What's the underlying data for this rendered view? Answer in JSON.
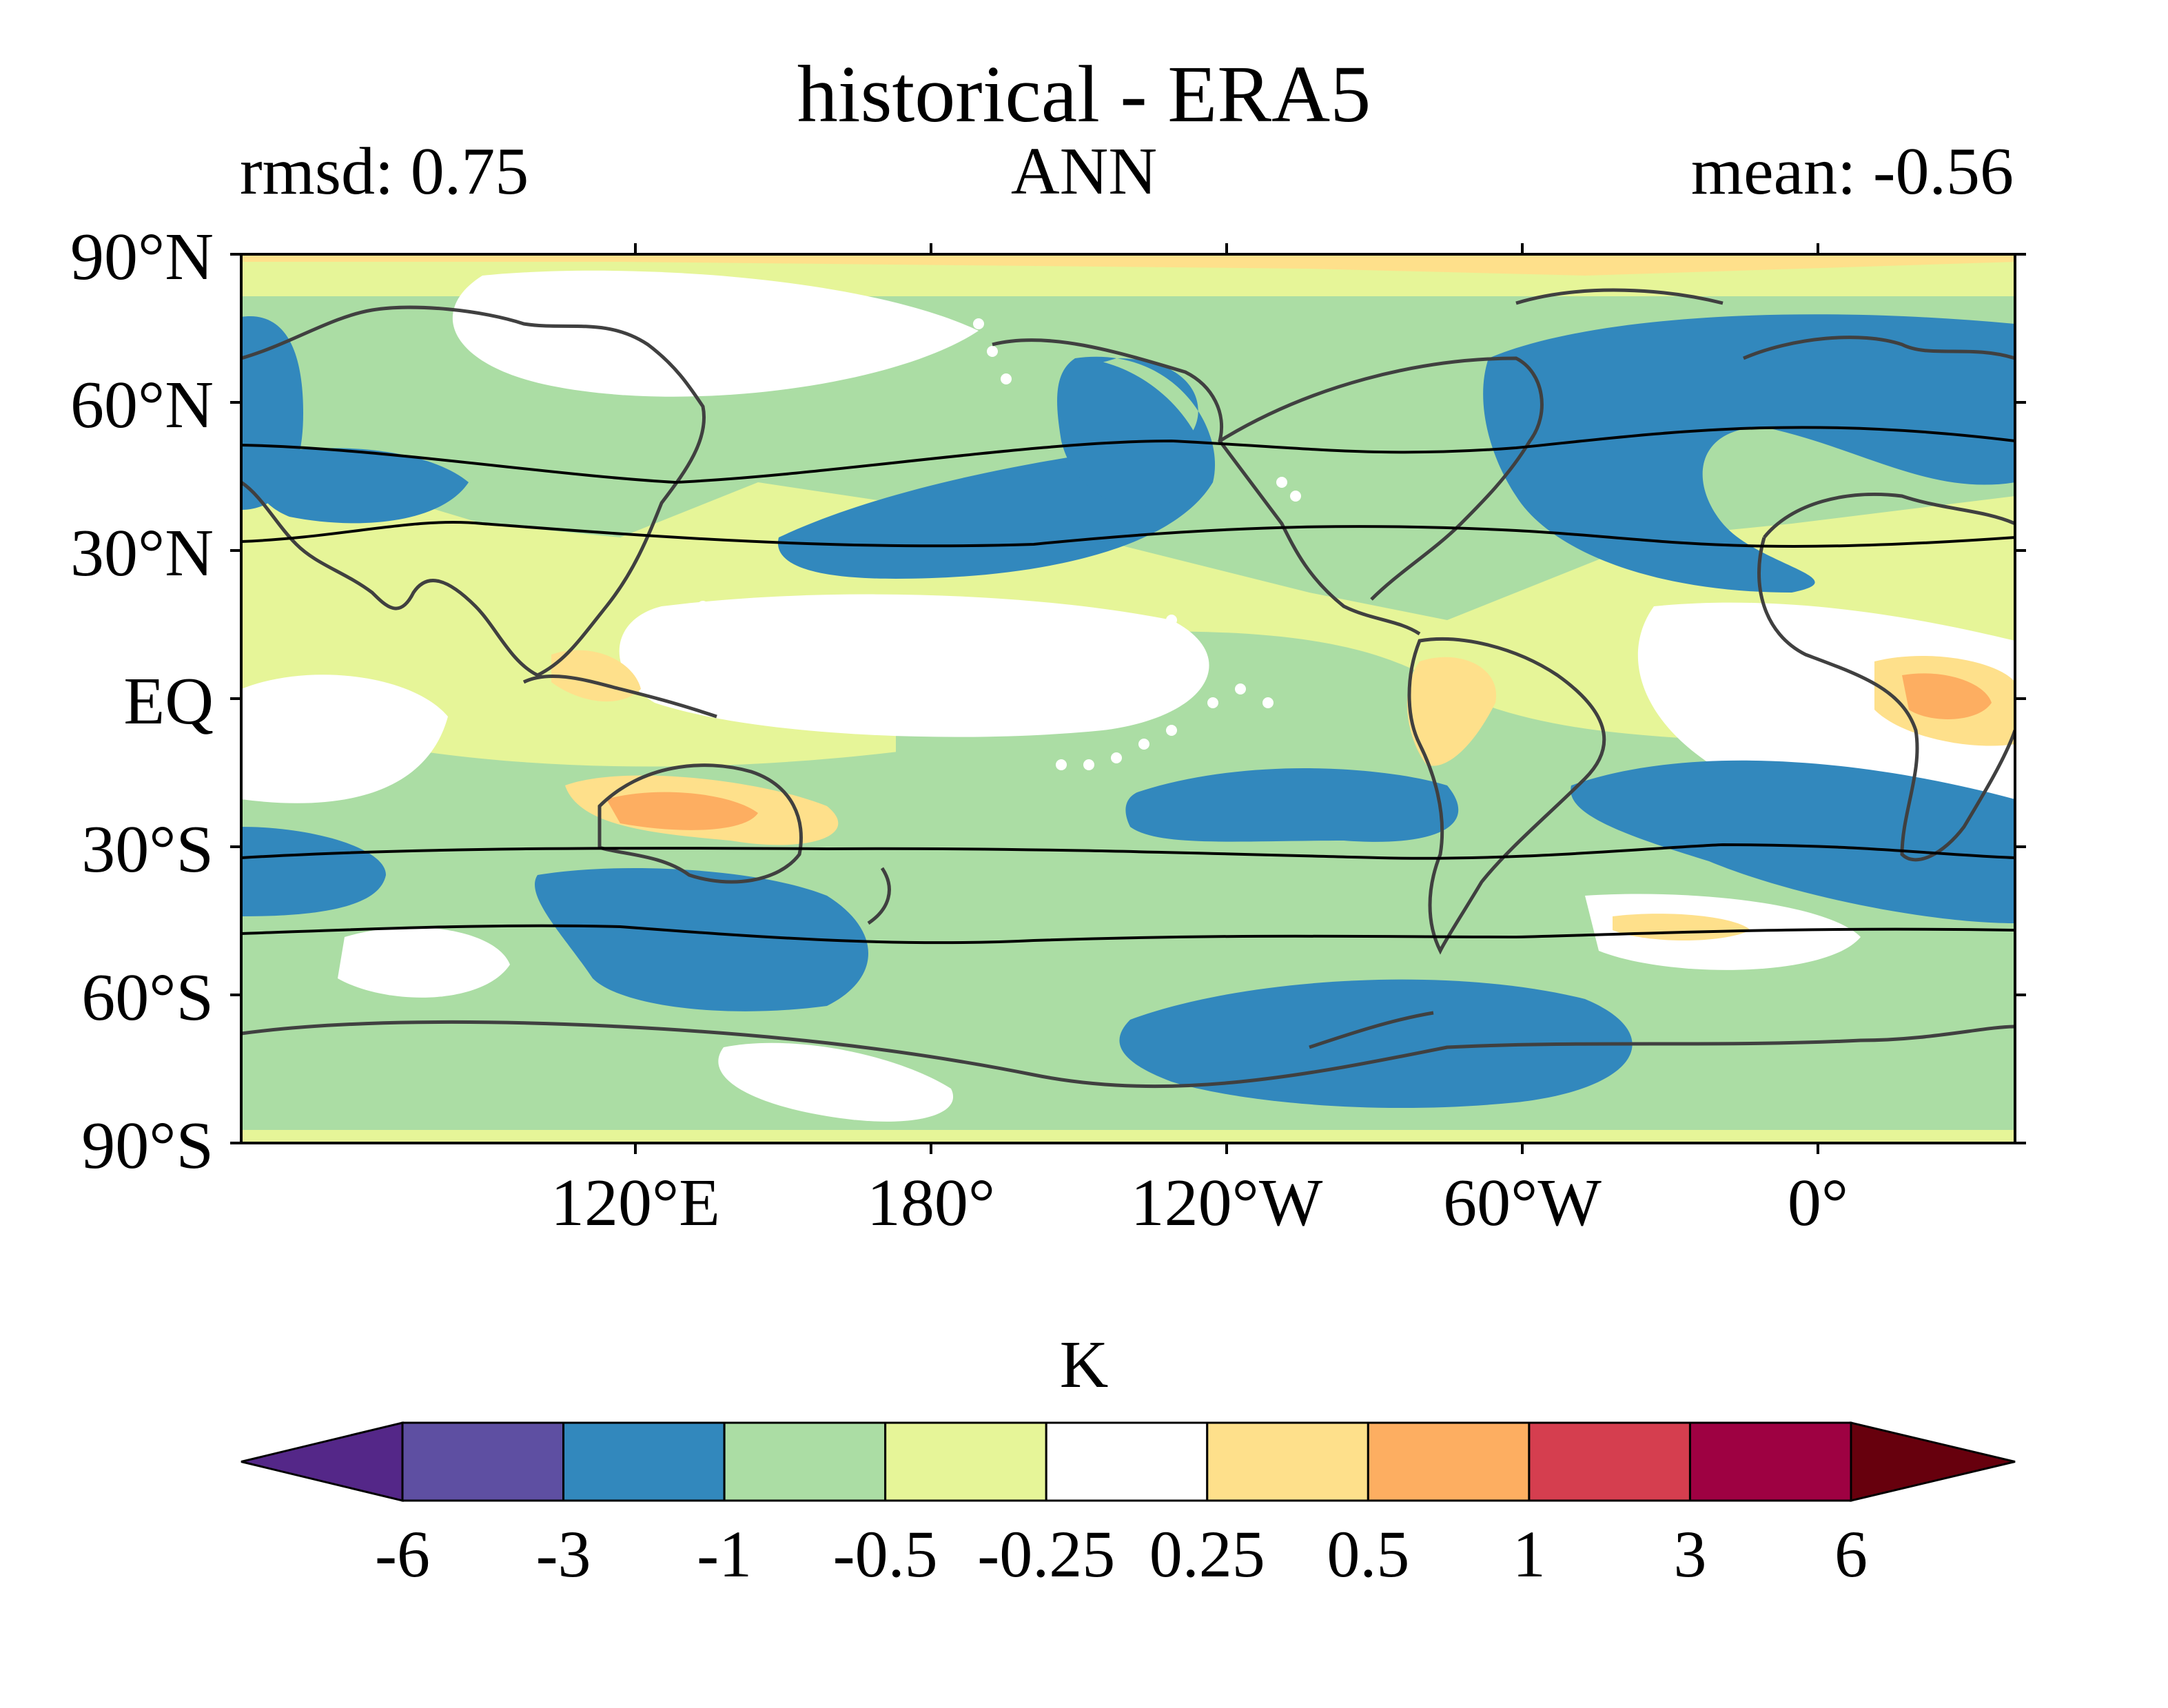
{
  "title": "historical - ERA5",
  "left_label": "rmsd: 0.75",
  "center_label": "ANN",
  "right_label": "mean: -0.56",
  "lat_ticks": [
    "90°N",
    "60°N",
    "30°N",
    "EQ",
    "30°S",
    "60°S",
    "90°S"
  ],
  "lon_ticks": [
    "120°E",
    "180°",
    "120°W",
    "60°W",
    "0°"
  ],
  "colorbar": {
    "unit": "K",
    "levels": [
      "-6",
      "-3",
      "-1",
      "-0.5",
      "-0.25",
      "0.25",
      "0.5",
      "1",
      "3",
      "6"
    ],
    "colors": [
      "#5e3c99",
      "#5e4fa2",
      "#3288bd",
      "#abdda4",
      "#e6f598",
      "#ffffff",
      "#fee08b",
      "#fdae61",
      "#d53e4f",
      "#9e0142"
    ],
    "under_color": "#542788",
    "over_color": "#67000d"
  },
  "map": {
    "projection": "PlateCarree",
    "central_longitude": 200,
    "lon_range": [
      20,
      380
    ],
    "lat_range": [
      -90,
      90
    ],
    "stippling": "white dots in tropical Pacific",
    "contour_lines": "black jet-position lines (model and reference) in each hemisphere"
  }
}
